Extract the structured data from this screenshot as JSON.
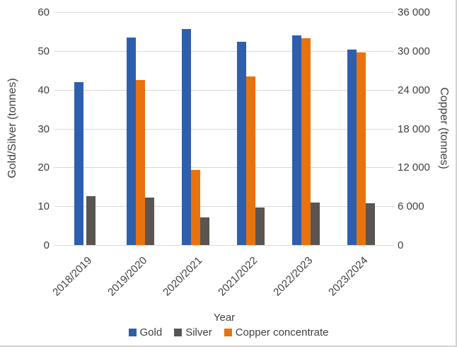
{
  "chart_data": {
    "type": "bar",
    "title": "",
    "xlabel": "Year",
    "categories": [
      "2018/2019",
      "2019/2020",
      "2020/2021",
      "2021/2022",
      "2022/2023",
      "2023/2024"
    ],
    "series": [
      {
        "name": "Gold",
        "axis": "left",
        "color": "#2E5FAD",
        "values": [
          42.0,
          53.5,
          55.6,
          52.4,
          54.0,
          50.3
        ]
      },
      {
        "name": "Silver",
        "axis": "left",
        "color": "#5A5550",
        "values": [
          12.6,
          12.2,
          7.2,
          9.6,
          11.0,
          10.7
        ]
      },
      {
        "name": "Copper concentrate",
        "axis": "right",
        "color": "#E8720E",
        "values": [
          null,
          25500,
          11600,
          26000,
          32000,
          29800
        ]
      }
    ],
    "bar_visual_order": [
      "Gold",
      "Copper concentrate",
      "Silver"
    ],
    "left_axis": {
      "label": "Gold/Silver (tonnes)",
      "min": 0,
      "max": 60,
      "ticks": [
        "0",
        "10",
        "20",
        "30",
        "40",
        "50",
        "60"
      ]
    },
    "right_axis": {
      "label": "Copper (tonnes)",
      "min": 0,
      "max": 36000,
      "ticks": [
        "0",
        "6 000",
        "12 000",
        "18 000",
        "24 000",
        "30 000",
        "36 000"
      ]
    },
    "legend": {
      "position": "bottom",
      "entries": [
        "Gold",
        "Silver",
        "Copper concentrate"
      ]
    },
    "grid": true,
    "gridline_color": "#D9D9D9",
    "text_color": "#3F3F3F"
  }
}
